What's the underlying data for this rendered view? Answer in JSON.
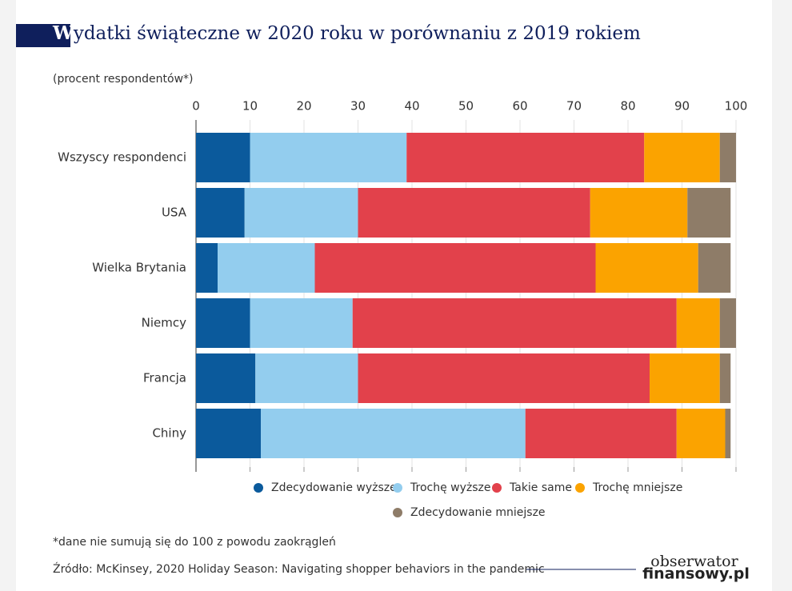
{
  "chart_data": {
    "type": "stacked-hbar",
    "title": "Wydatki świąteczne w 2020 roku w porównaniu z 2019 rokiem",
    "subtitle": "(procent respondentów*)",
    "categories": [
      "Wszyscy respondenci",
      "USA",
      "Wielka Brytania",
      "Niemcy",
      "Francja",
      "Chiny"
    ],
    "series": [
      {
        "name": "Zdecydowanie wyższe",
        "color": "#0b5a9c",
        "values": [
          10,
          9,
          4,
          10,
          11,
          12
        ]
      },
      {
        "name": "Trochę wyższe",
        "color": "#93cdee",
        "values": [
          29,
          21,
          18,
          19,
          19,
          49
        ]
      },
      {
        "name": "Takie same",
        "color": "#e2414b",
        "values": [
          44,
          43,
          52,
          60,
          54,
          28
        ]
      },
      {
        "name": "Trochę mniejsze",
        "color": "#fba300",
        "values": [
          14,
          18,
          19,
          8,
          13,
          9
        ]
      },
      {
        "name": "Zdecydowanie mniejsze",
        "color": "#8e7c68",
        "values": [
          3,
          8,
          6,
          3,
          2,
          1
        ]
      }
    ],
    "xlim": [
      0,
      100
    ],
    "xticks": [
      0,
      10,
      20,
      30,
      40,
      50,
      60,
      70,
      80,
      90,
      100
    ],
    "grid": true,
    "note": "*dane nie sumują się do 100 z powodu zaokrągleń",
    "source": "Źródło: McKinsey, 2020 Holiday Season: Navigating shopper behaviors in the pandemic"
  },
  "branding": {
    "line1": "obserwator",
    "line2": "finansowy.pl"
  }
}
